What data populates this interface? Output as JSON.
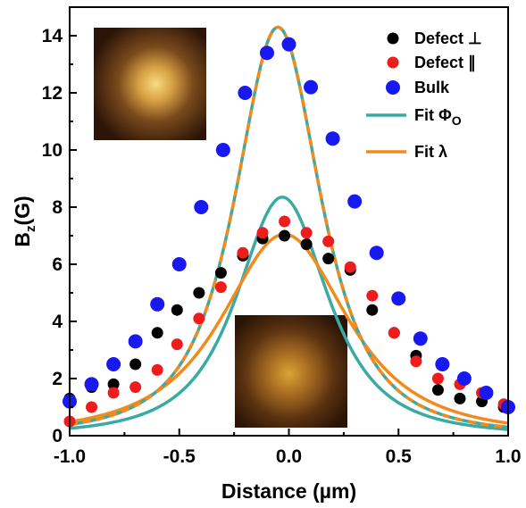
{
  "chart_data": {
    "type": "scatter",
    "xlabel": "Distance (µm)",
    "ylabel": "B",
    "ylabel_sub": "z",
    "ylabel_unit": "(G)",
    "xlim": [
      -1.0,
      1.0
    ],
    "ylim": [
      0,
      15
    ],
    "x_ticks": [
      "-1.0",
      "-0.5",
      "0.0",
      "0.5",
      "1.0"
    ],
    "y_ticks": [
      "0",
      "2",
      "4",
      "6",
      "8",
      "10",
      "12",
      "14"
    ],
    "grid": false,
    "legend_position": "top-right",
    "series": [
      {
        "name": "Defect ⊥",
        "kind": "points",
        "color": "#000000",
        "x": [
          -1.0,
          -0.9,
          -0.8,
          -0.7,
          -0.6,
          -0.51,
          -0.41,
          -0.31,
          -0.21,
          -0.12,
          -0.02,
          0.08,
          0.18,
          0.28,
          0.38,
          0.48,
          0.58,
          0.68,
          0.78,
          0.88,
          0.98
        ],
        "y": [
          1.3,
          1.7,
          1.8,
          2.5,
          3.6,
          4.4,
          5.0,
          5.7,
          6.3,
          6.9,
          7.0,
          6.7,
          6.2,
          5.8,
          4.4,
          3.6,
          2.8,
          1.6,
          1.3,
          1.2,
          1.0
        ]
      },
      {
        "name": "Defect ∥",
        "kind": "points",
        "color": "#ee1c1c",
        "x": [
          -1.0,
          -0.9,
          -0.8,
          -0.7,
          -0.6,
          -0.51,
          -0.41,
          -0.31,
          -0.21,
          -0.12,
          -0.02,
          0.08,
          0.18,
          0.28,
          0.38,
          0.48,
          0.58,
          0.68,
          0.78,
          0.88,
          0.98
        ],
        "y": [
          0.5,
          1.0,
          1.5,
          1.7,
          2.3,
          3.2,
          4.1,
          5.2,
          6.4,
          7.1,
          7.5,
          7.1,
          6.8,
          5.9,
          4.9,
          3.6,
          2.6,
          2.0,
          1.8,
          1.5,
          1.1
        ]
      },
      {
        "name": "Bulk",
        "kind": "points",
        "color": "#1818f0",
        "x": [
          -1.0,
          -0.9,
          -0.8,
          -0.7,
          -0.6,
          -0.5,
          -0.4,
          -0.3,
          -0.2,
          -0.1,
          0.0,
          0.1,
          0.2,
          0.3,
          0.4,
          0.5,
          0.6,
          0.7,
          0.8,
          0.9,
          1.0
        ],
        "y": [
          1.2,
          1.8,
          2.5,
          3.3,
          4.6,
          6.0,
          8.0,
          10.0,
          12.0,
          13.4,
          13.7,
          12.2,
          10.4,
          8.2,
          6.4,
          4.8,
          3.4,
          2.5,
          2.0,
          1.5,
          1.0
        ]
      },
      {
        "name": "Fit Φ",
        "name_sub": "O",
        "kind": "line",
        "color": "#3aaaa4",
        "curves": [
          {
            "center": -0.05,
            "amplitude": 14.3,
            "halfwidth": 0.3,
            "exponent": 1.5
          },
          {
            "center": -0.03,
            "amplitude": 8.35,
            "halfwidth": 0.32,
            "exponent": 1.5
          }
        ]
      },
      {
        "name": "Fit λ",
        "kind": "line",
        "color": "#f28a1c",
        "dashed_overlay_on": "bulk",
        "curves": [
          {
            "center": -0.05,
            "amplitude": 14.3,
            "halfwidth": 0.3,
            "exponent": 1.5
          },
          {
            "center": -0.02,
            "amplitude": 7.05,
            "halfwidth": 0.44,
            "exponent": 1.5
          }
        ]
      }
    ],
    "insets": [
      {
        "name": "bulk-vortex-image",
        "position": "top-left",
        "spot_color": "#f8dc80"
      },
      {
        "name": "defect-vortex-image",
        "position": "bottom-center",
        "spot_color": "#d8a634"
      }
    ]
  }
}
